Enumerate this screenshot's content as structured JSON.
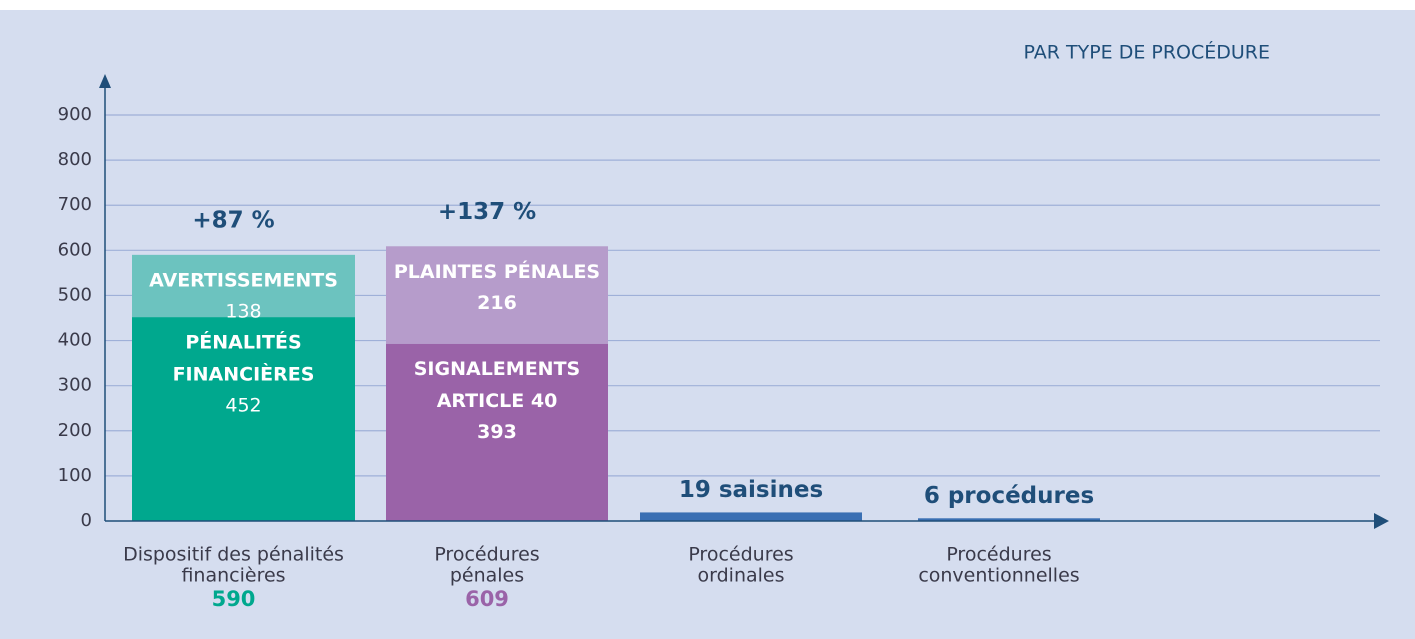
{
  "chart_data": {
    "type": "stacked_bar",
    "subtitle": "PAR TYPE DE PROCÉDURE",
    "ylim": [
      0,
      900
    ],
    "yticks": [
      0,
      100,
      200,
      300,
      400,
      500,
      600,
      700,
      800,
      900
    ],
    "grid": true,
    "bars": [
      {
        "category": [
          "Dispositif des pénalités",
          "financières"
        ],
        "total": 590,
        "total_color": "#00a88e",
        "change": "+87 %",
        "segments": [
          {
            "name": [
              "PÉNALITÉS",
              "FINANCIÈRES"
            ],
            "value": 452,
            "color": "#00a88e"
          },
          {
            "name": [
              "AVERTISSEMENTS"
            ],
            "value": 138,
            "color": "#6cc3bf"
          }
        ]
      },
      {
        "category": [
          "Procédures",
          "pénales"
        ],
        "total": 609,
        "total_color": "#9a63a8",
        "change": "+137 %",
        "segments": [
          {
            "name": [
              "SIGNALEMENTS",
              "ARTICLE 40"
            ],
            "value": 393,
            "color": "#9a63a8"
          },
          {
            "name": [
              "PLAINTES PÉNALES"
            ],
            "value": 216,
            "color": "#b69ccb"
          }
        ]
      },
      {
        "category": [
          "Procédures",
          "ordinales"
        ],
        "segments": [
          {
            "value": 19,
            "value_label": "19 saisines",
            "color": "#3a6fb3"
          }
        ]
      },
      {
        "category": [
          "Procédures",
          "conventionnelles"
        ],
        "segments": [
          {
            "value": 6,
            "value_label": "6 procédures",
            "color": "#3a6fb3"
          }
        ]
      }
    ]
  }
}
